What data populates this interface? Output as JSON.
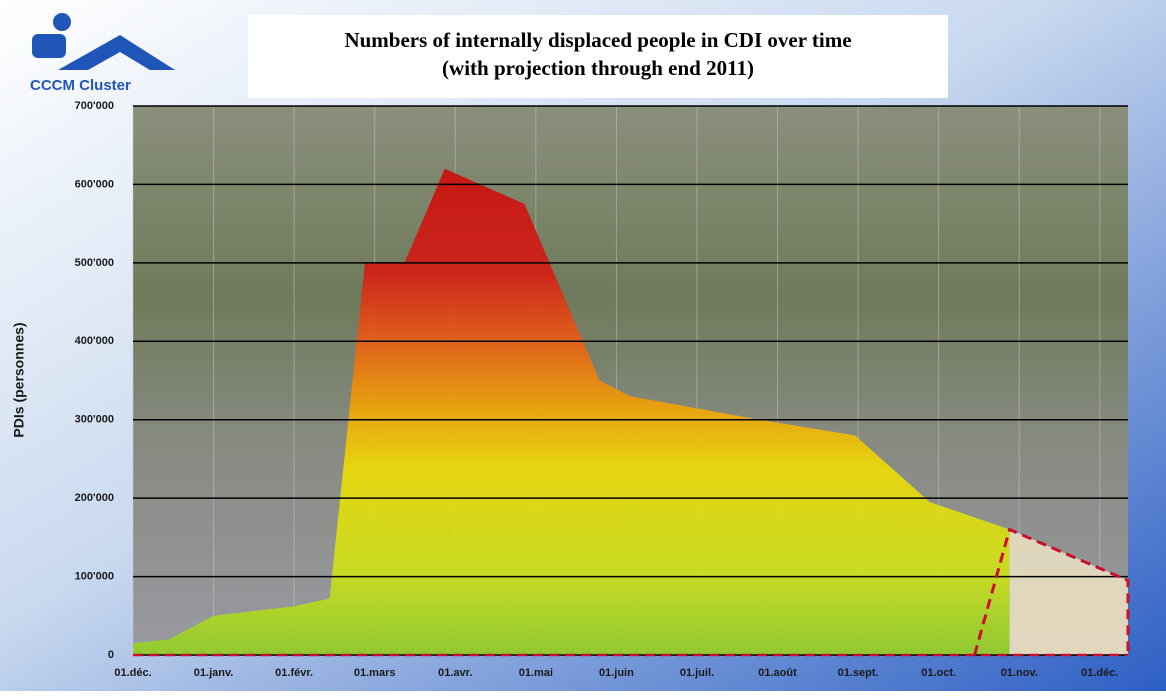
{
  "logo_text": "CCCM Cluster",
  "chart_data": {
    "type": "area",
    "title": "Numbers of internally displaced people in CDI over time",
    "subtitle": "(with projection through end 2011)",
    "y_label": "PDIs (personnes)",
    "xlim": [
      0,
      12.35
    ],
    "xticks": [
      {
        "value": 0,
        "label": "01.déc."
      },
      {
        "value": 1,
        "label": "01.janv."
      },
      {
        "value": 2,
        "label": "01.févr."
      },
      {
        "value": 3,
        "label": "01.mars"
      },
      {
        "value": 4,
        "label": "01.avr."
      },
      {
        "value": 5,
        "label": "01.mai"
      },
      {
        "value": 6,
        "label": "01.juin"
      },
      {
        "value": 7,
        "label": "01.juil."
      },
      {
        "value": 8,
        "label": "01.août"
      },
      {
        "value": 9,
        "label": "01.sept."
      },
      {
        "value": 10,
        "label": "01.oct."
      },
      {
        "value": 11,
        "label": "01.nov."
      },
      {
        "value": 12,
        "label": "01.déc."
      }
    ],
    "ylim": [
      0,
      700000
    ],
    "yticks": [
      0,
      {
        "value": 100000,
        "label": "100'000"
      },
      {
        "value": 200000,
        "label": "200'000"
      },
      {
        "value": 300000,
        "label": "300'000"
      },
      {
        "value": 400000,
        "label": "400'000"
      },
      {
        "value": 500000,
        "label": "500'000"
      },
      {
        "value": 600000,
        "label": "600'000"
      },
      {
        "value": 700000,
        "label": "700'000"
      }
    ],
    "grid": true,
    "series": [
      {
        "color": "gradient",
        "style": "solid",
        "x": [
          0,
          0.45,
          1,
          2,
          2.44,
          2.88,
          3.37,
          3.87,
          4.86,
          5.79,
          6.17,
          7.78,
          8.96,
          9.89,
          10.88
        ],
        "values": [
          15000,
          20000,
          50000,
          62000,
          72000,
          500000,
          500000,
          620000,
          575000,
          350000,
          330000,
          300000,
          280000,
          195000,
          160000
        ]
      },
      {
        "color": "#e6dcc0",
        "style": "dashed",
        "x": [
          10.88,
          12.35
        ],
        "values": [
          160000,
          95000
        ]
      }
    ]
  }
}
